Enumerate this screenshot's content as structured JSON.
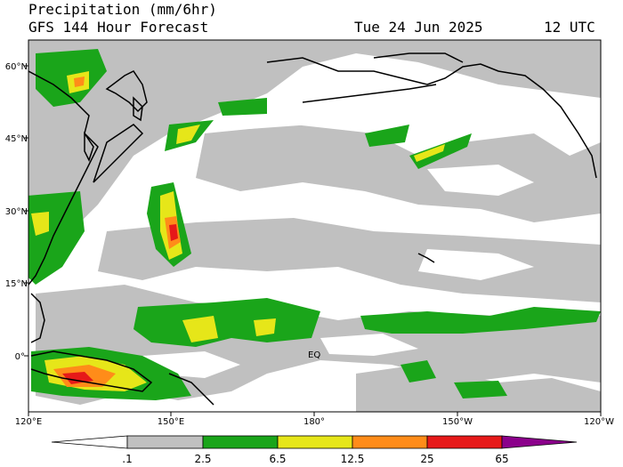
{
  "header": {
    "title": "Precipitation (mm/6hr)",
    "subtitle": "GFS 144 Hour Forecast",
    "date": "Tue 24 Jun 2025",
    "time": "12 UTC"
  },
  "map": {
    "lon_range": [
      120,
      240
    ],
    "lat_range": [
      -12,
      66
    ],
    "lon_ticks": [
      "120°E",
      "150°E",
      "180°",
      "150°W",
      "120°W"
    ],
    "lat_ticks": [
      "60°N",
      "45°N",
      "30°N",
      "15°N",
      "0°"
    ],
    "eq_label": "EQ"
  },
  "colorbar": {
    "labels": [
      ".1",
      "2.5",
      "6.5",
      "12.5",
      "25",
      "65"
    ],
    "colors": [
      "#ffffff",
      "#c0c0c0",
      "#1aa51a",
      "#e6e619",
      "#ff8c19",
      "#e61919",
      "#8b008b"
    ]
  }
}
